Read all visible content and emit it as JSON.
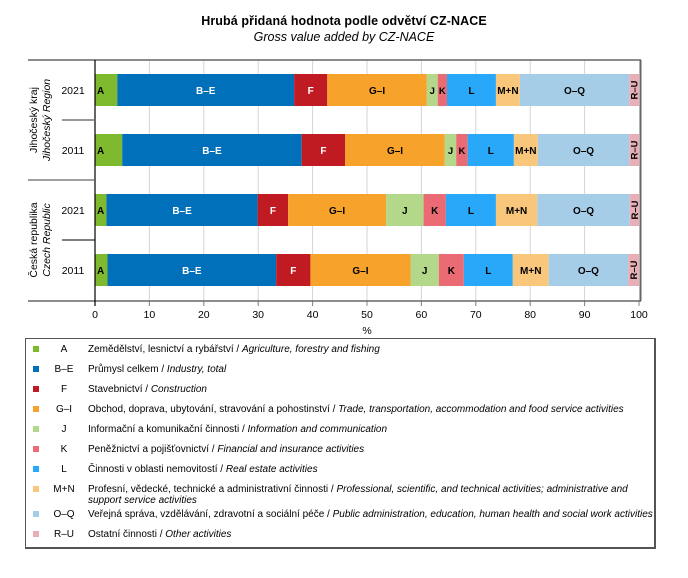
{
  "chart_data": {
    "type": "bar",
    "orientation": "horizontal",
    "stacked": true,
    "title": "Hrubá přidaná hodnota podle odvětví CZ-NACE",
    "subtitle": "Gross value added by CZ-NACE",
    "xlabel": "%",
    "ylabel": "",
    "xlim": [
      0,
      100
    ],
    "x_ticks": [
      "0",
      "10",
      "20",
      "30",
      "40",
      "50",
      "60",
      "70",
      "80",
      "90",
      "100"
    ],
    "grid": true,
    "legend_placement": "bottom",
    "groups": [
      {
        "label_cz": "Jihočeský kraj",
        "label_en": "Jihočeský Region",
        "categories": [
          "2021",
          "2011"
        ]
      },
      {
        "label_cz": "Česká republika",
        "label_en": "Czech Republic",
        "categories": [
          "2021",
          "2011"
        ]
      }
    ],
    "categories": [
      "Jihočeský kraj 2021",
      "Jihočeský kraj 2011",
      "Česká republika 2021",
      "Česká republika 2011"
    ],
    "series": [
      {
        "name": "A",
        "label": "A",
        "color": "#7fba2e",
        "text_color": "#000000",
        "values": [
          4.1,
          5.0,
          2.1,
          2.3
        ]
      },
      {
        "name": "B–E",
        "label": "B–E",
        "color": "#0070bb",
        "text_color": "#ffffff",
        "values": [
          32.5,
          33.0,
          27.8,
          31.0
        ]
      },
      {
        "name": "F",
        "label": "F",
        "color": "#c01b22",
        "text_color": "#ffffff",
        "values": [
          6.1,
          8.0,
          5.6,
          6.3
        ]
      },
      {
        "name": "G–I",
        "label": "G–I",
        "color": "#f7a22b",
        "text_color": "#000000",
        "values": [
          18.3,
          18.3,
          18.0,
          18.4
        ]
      },
      {
        "name": "J",
        "label": "J",
        "color": "#b3d88a",
        "text_color": "#000000",
        "values": [
          2.0,
          2.1,
          6.9,
          5.2
        ]
      },
      {
        "name": "K",
        "label": "K",
        "color": "#ea6b73",
        "text_color": "#000000",
        "values": [
          1.7,
          2.1,
          4.1,
          4.6
        ]
      },
      {
        "name": "L",
        "label": "L",
        "color": "#29a8fa",
        "text_color": "#000000",
        "values": [
          9.0,
          8.5,
          9.2,
          9.0
        ]
      },
      {
        "name": "M+N",
        "label": "M+N",
        "color": "#f9c77c",
        "text_color": "#000000",
        "values": [
          4.4,
          4.4,
          7.6,
          6.6
        ]
      },
      {
        "name": "O–Q",
        "label": "O–Q",
        "color": "#a6cde8",
        "text_color": "#000000",
        "values": [
          20.1,
          16.8,
          17.0,
          14.6
        ]
      },
      {
        "name": "R–U",
        "label": "R–U",
        "color": "#e8b0b6",
        "text_color": "#000000",
        "values": [
          1.8,
          1.8,
          1.7,
          2.0
        ]
      }
    ]
  },
  "legend": {
    "items": [
      {
        "code": "A",
        "cz": "Zemědělství, lesnictví a rybářství",
        "sep": " / ",
        "en": "Agriculture, forestry and fishing",
        "color": "#7fba2e"
      },
      {
        "code": "B–E",
        "cz": "Průmysl celkem",
        "sep": " / ",
        "en": "Industry, total",
        "color": "#0070bb"
      },
      {
        "code": "F",
        "cz": "Stavebnictví",
        "sep": " / ",
        "en": "Construction",
        "color": "#c01b22"
      },
      {
        "code": "G–I",
        "cz": "Obchod, doprava, ubytování, stravování a pohostinství",
        "sep": " / ",
        "en": "Trade, transportation, accommodation and food service activities",
        "color": "#f7a22b"
      },
      {
        "code": "J",
        "cz": "Informační a komunikační činnosti",
        "sep": " / ",
        "en": "Information and communication",
        "color": "#b3d88a"
      },
      {
        "code": "K",
        "cz": "Peněžnictví a pojišťovnictví",
        "sep": " / ",
        "en": "Financial and insurance activities",
        "color": "#ea6b73"
      },
      {
        "code": "L",
        "cz": "Činnosti v oblasti nemovitostí",
        "sep": " / ",
        "en": "Real estate activities",
        "color": "#29a8fa"
      },
      {
        "code": "M+N",
        "cz": "Profesní, vědecké, technické a administrativní činnosti",
        "sep": " / ",
        "en": "Professional, scientific, and technical activities; administrative and support service activities",
        "color": "#f9c77c"
      },
      {
        "code": "O–Q",
        "cz": "Veřejná správa, vzdělávání, zdravotní a sociální péče",
        "sep": " / ",
        "en": "Public administration, education, human health and social work activities",
        "color": "#a6cde8"
      },
      {
        "code": "R–U",
        "cz": "Ostatní činnosti",
        "sep": " / ",
        "en": "Other activities",
        "color": "#e8b0b6"
      }
    ]
  }
}
